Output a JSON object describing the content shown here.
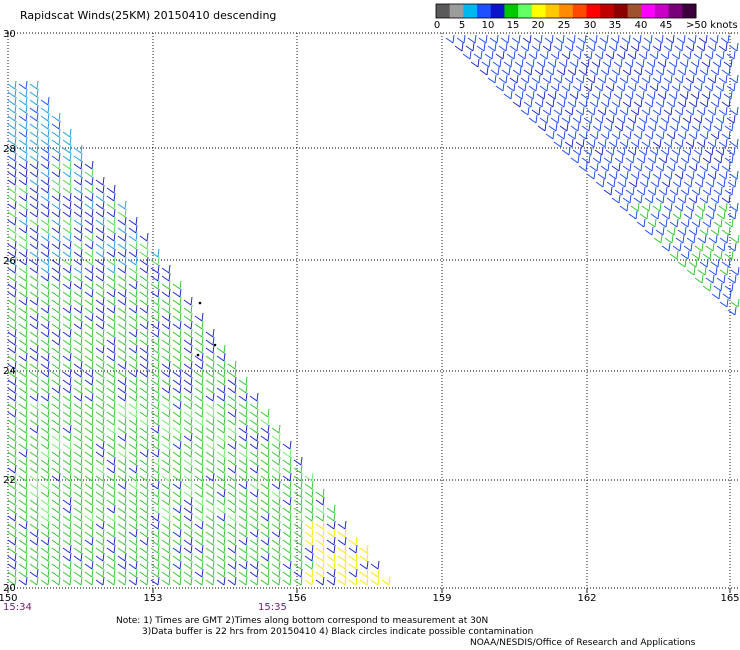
{
  "title": "Rapidscat Winds(25KM) 20150410 descending",
  "colorbar": {
    "labels": [
      "0",
      "5",
      "10",
      "15",
      "20",
      "25",
      "30",
      "35",
      "40",
      "45",
      ">50 knots"
    ],
    "colors": [
      "#5a5a5a",
      "#9c9c9c",
      "#00b8f0",
      "#1e50ff",
      "#0a14c8",
      "#00c800",
      "#64ff64",
      "#ffff00",
      "#ffc800",
      "#ff8c00",
      "#ff4800",
      "#ff0000",
      "#c00000",
      "#8c0000",
      "#a0522d",
      "#ff00ff",
      "#c800c8",
      "#780078",
      "#3c003c"
    ]
  },
  "axes": {
    "lon_labels": [
      "150",
      "153",
      "156",
      "159",
      "162",
      "165"
    ],
    "lat_labels": [
      "30",
      "28",
      "26",
      "24",
      "22",
      "20"
    ]
  },
  "times": {
    "left": "15:34",
    "mid": "15:35"
  },
  "notes": {
    "line1": "Note: 1) Times are GMT 2)Times along bottom correspond to measurement at 30N",
    "line2": "3)Data buffer is 22 hrs from 20150410 4) Black circles indicate possible contamination",
    "credit": "NOAA/NESDIS/Office of Research and Applications"
  }
}
